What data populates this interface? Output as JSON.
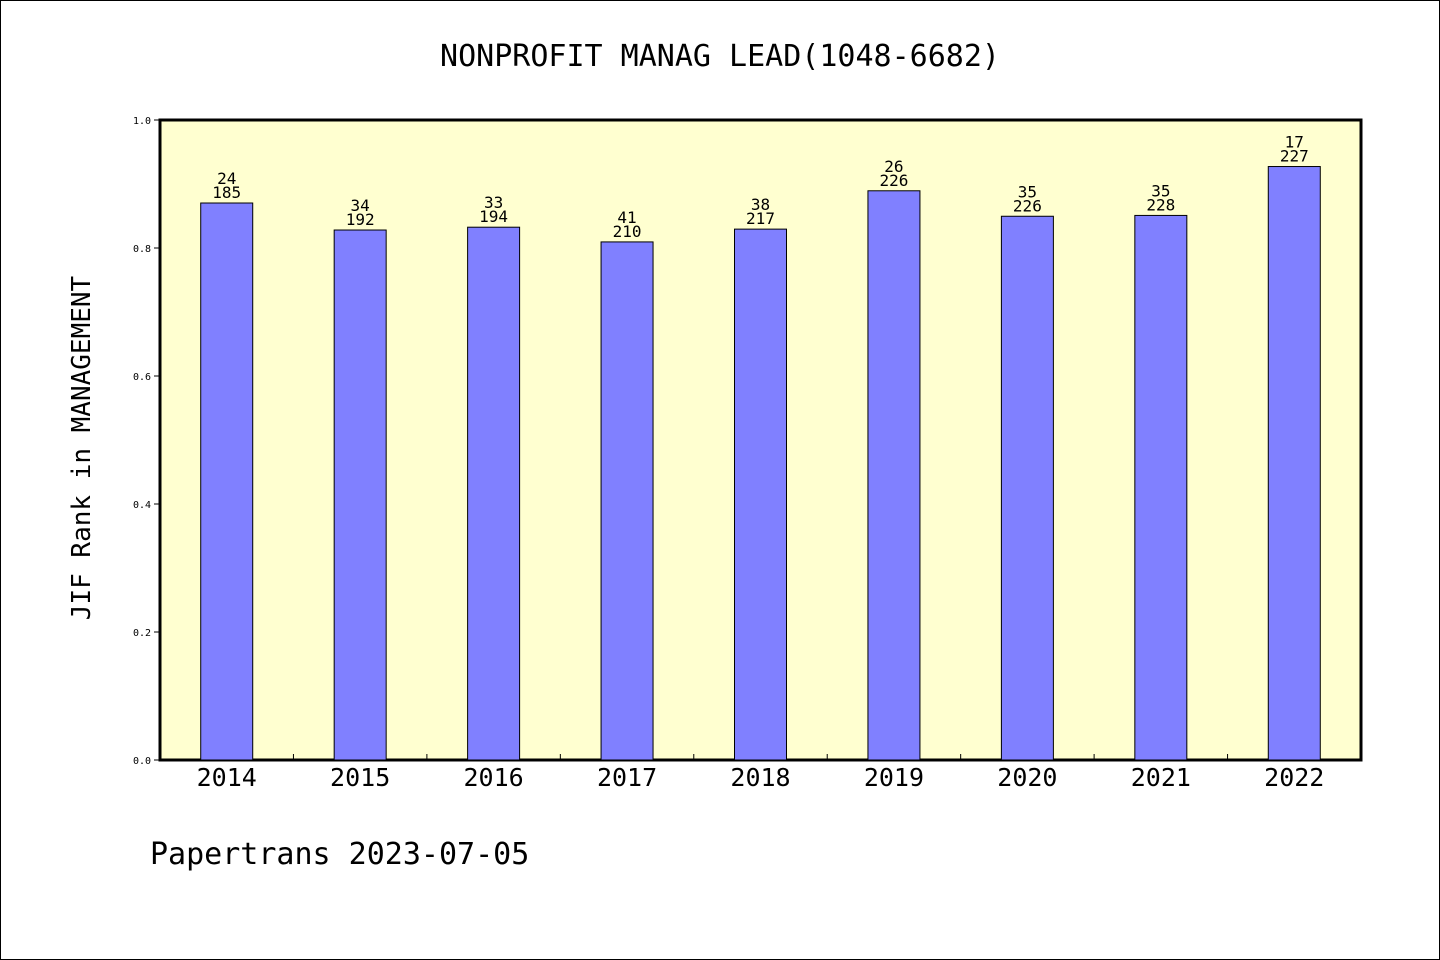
{
  "chart_data": {
    "type": "bar",
    "title": "NONPROFIT MANAG LEAD(1048-6682)",
    "xlabel": "",
    "ylabel": "JIF Rank in MANAGEMENT",
    "ylim": [
      0,
      1.0
    ],
    "yticks": [
      "0.0",
      "0.2",
      "0.4",
      "0.6",
      "0.8",
      "1.0"
    ],
    "categories": [
      "2014",
      "2015",
      "2016",
      "2017",
      "2018",
      "2019",
      "2020",
      "2021",
      "2022"
    ],
    "values": [
      0.8703,
      0.8281,
      0.8325,
      0.8095,
      0.8295,
      0.8894,
      0.8496,
      0.8509,
      0.9273
    ],
    "rank": [
      "24",
      "34",
      "33",
      "41",
      "38",
      "26",
      "35",
      "35",
      "17"
    ],
    "total": [
      "185",
      "192",
      "194",
      "210",
      "217",
      "226",
      "226",
      "228",
      "227"
    ],
    "grid": false,
    "colors": {
      "plot_background": "#ffffd0",
      "bar_fill": "#8080ff",
      "axis": "#000000"
    }
  },
  "footer": {
    "credit": "Papertrans 2023-07-05"
  }
}
